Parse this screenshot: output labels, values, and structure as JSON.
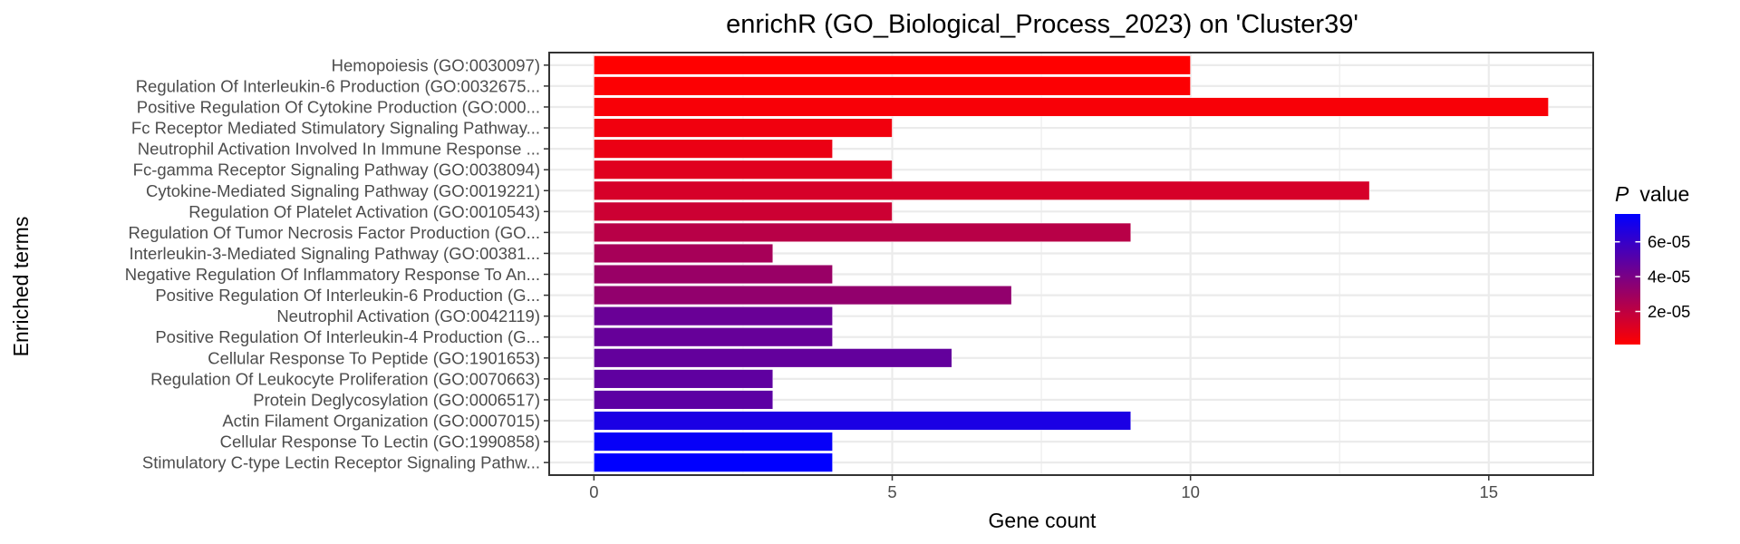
{
  "chart_data": {
    "type": "bar",
    "orientation": "horizontal",
    "title": "enrichR (GO_Biological_Process_2023) on 'Cluster39'",
    "xlabel": "Gene count",
    "ylabel": "Enriched terms",
    "xlim": [
      -0.75,
      16.75
    ],
    "xticks": [
      0,
      5,
      10,
      15
    ],
    "xtick_labels": [
      "0",
      "5",
      "10",
      "15"
    ],
    "grid": true,
    "categories": [
      "Hemopoiesis (GO:0030097)",
      "Regulation Of Interleukin-6 Production (GO:0032675...",
      "Positive Regulation Of Cytokine Production (GO:000...",
      "Fc Receptor Mediated Stimulatory Signaling Pathway...",
      "Neutrophil Activation Involved In Immune Response ...",
      "Fc-gamma Receptor Signaling Pathway (GO:0038094)",
      "Cytokine-Mediated Signaling Pathway (GO:0019221)",
      "Regulation Of Platelet Activation (GO:0010543)",
      "Regulation Of Tumor Necrosis Factor Production (GO...",
      "Interleukin-3-Mediated Signaling Pathway (GO:00381...",
      "Negative Regulation Of Inflammatory Response To An...",
      "Positive Regulation Of Interleukin-6 Production (G...",
      "Neutrophil Activation (GO:0042119)",
      "Positive Regulation Of Interleukin-4 Production (G...",
      "Cellular Response To Peptide (GO:1901653)",
      "Regulation Of Leukocyte Proliferation (GO:0070663)",
      "Protein Deglycosylation (GO:0006517)",
      "Actin Filament Organization (GO:0007015)",
      "Cellular Response To Lectin (GO:1990858)",
      "Stimulatory C-type Lectin Receptor Signaling Pathw..."
    ],
    "values": [
      10,
      10,
      16,
      5,
      4,
      5,
      13,
      5,
      9,
      3,
      4,
      7,
      4,
      4,
      6,
      3,
      3,
      9,
      4,
      4
    ],
    "p_values": [
      1e-06,
      2e-06,
      3e-06,
      5e-06,
      7e-06,
      1e-05,
      1.3e-05,
      1.6e-05,
      2.2e-05,
      2.7e-05,
      3.1e-05,
      3.3e-05,
      4.5e-05,
      4.6e-05,
      4.7e-05,
      4.8e-05,
      4.9e-05,
      6.8e-05,
      7.4e-05,
      7.6e-05
    ],
    "legend": {
      "title_italic": "P",
      "title_rest": "value",
      "placement": "right",
      "color_low": "#ff0000",
      "color_high": "#0000ff",
      "range": [
        1e-06,
        7.6e-05
      ],
      "ticks": [
        2e-05,
        4e-05,
        6e-05
      ],
      "tick_labels": [
        "2e-05",
        "4e-05",
        "6e-05"
      ]
    }
  }
}
